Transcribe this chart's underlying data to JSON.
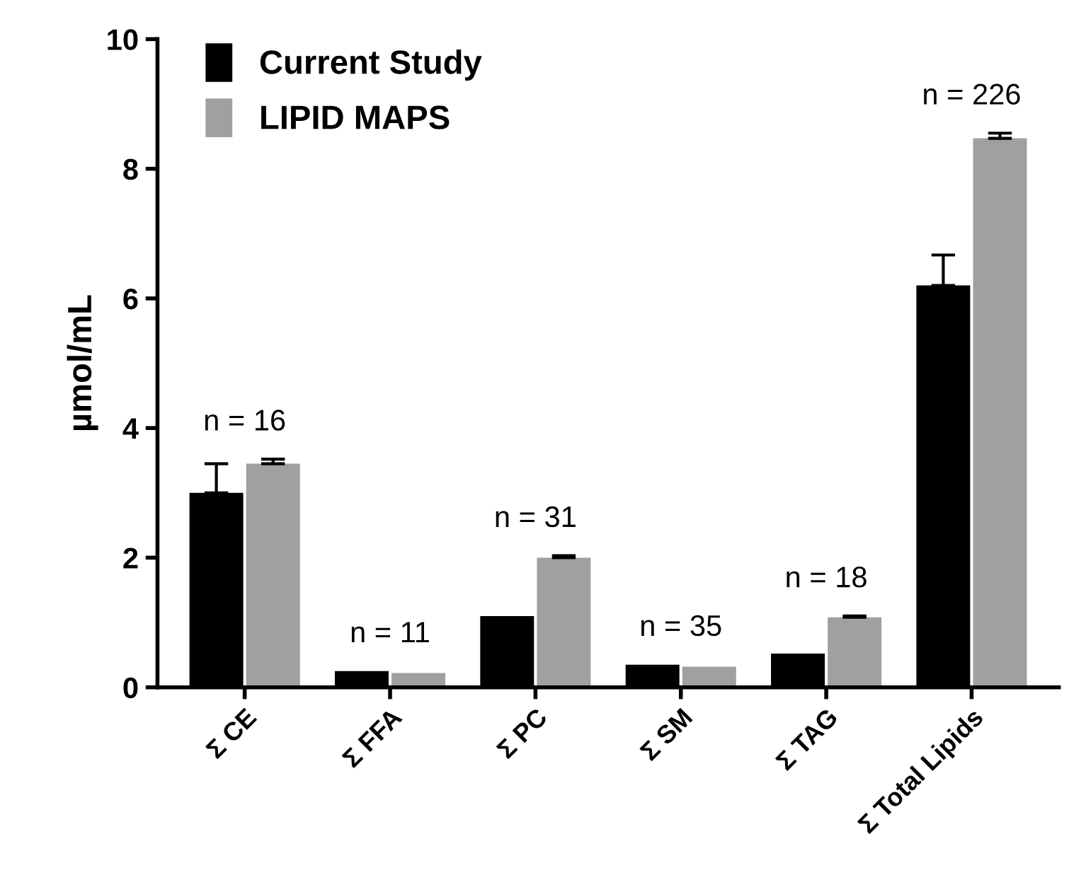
{
  "chart_data": {
    "type": "bar",
    "ylabel": "µmol/mL",
    "categories": [
      "Σ CE",
      "Σ FFA",
      "Σ PC",
      "Σ SM",
      "Σ TAG",
      "Σ Total Lipids"
    ],
    "series": [
      {
        "name": "Current Study",
        "color": "#000000",
        "values": [
          3.0,
          0.25,
          1.1,
          0.35,
          0.52,
          6.2
        ],
        "errors": [
          0.45,
          null,
          null,
          null,
          null,
          0.47
        ]
      },
      {
        "name": "LIPID MAPS",
        "color": "#a0a0a3",
        "values": [
          3.45,
          0.22,
          2.0,
          0.32,
          1.08,
          8.47
        ],
        "errors": [
          0.07,
          null,
          0.03,
          null,
          0.02,
          0.08
        ]
      }
    ],
    "annotations": [
      "n = 16",
      "n = 11",
      "n = 31",
      "n = 35",
      "n = 18",
      "n = 226"
    ],
    "ylim": [
      0,
      10
    ],
    "yticks": [
      0,
      2,
      4,
      6,
      8,
      10
    ],
    "grid": false,
    "legend": "top left"
  }
}
